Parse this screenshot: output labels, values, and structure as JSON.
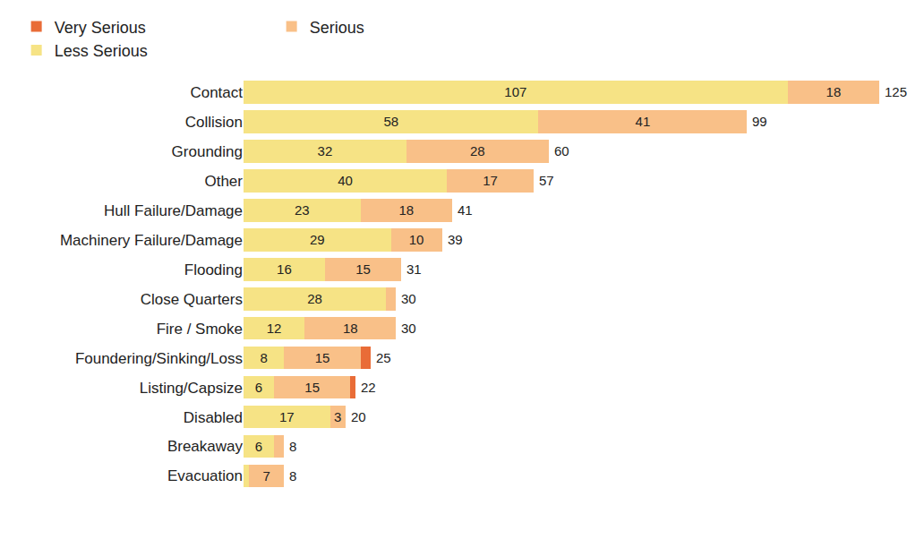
{
  "chart_data": {
    "type": "bar",
    "orientation": "horizontal",
    "stacked": true,
    "data_labels": true,
    "tick_labels": "y",
    "grid": false,
    "legend": "top-left",
    "categories": [
      "Contact",
      "Collision",
      "Grounding",
      "Other",
      "Hull Failure/Damage",
      "Machinery Failure/Damage",
      "Flooding",
      "Close Quarters",
      "Fire / Smoke",
      "Foundering/Sinking/Loss",
      "Listing/Capsize",
      "Disabled",
      "Breakaway",
      "Evacuation"
    ],
    "xlim": [
      0,
      125
    ],
    "series": [
      {
        "name": "Less Serious",
        "color": "#f6e385",
        "values": [
          107,
          58,
          32,
          40,
          23,
          29,
          16,
          28,
          12,
          8,
          6,
          17,
          6,
          1
        ],
        "value_labels": [
          "107",
          "58",
          "32",
          "40",
          "23",
          "29",
          "16",
          "28",
          "12",
          "8",
          "6",
          "17",
          "6",
          null
        ]
      },
      {
        "name": "Serious",
        "color": "#f9c088",
        "values": [
          18,
          41,
          28,
          17,
          18,
          10,
          15,
          2,
          18,
          15,
          15,
          3,
          2,
          7
        ],
        "value_labels": [
          "18",
          "41",
          "28",
          "17",
          "18",
          "10",
          "15",
          null,
          "18",
          "15",
          "15",
          "3",
          null,
          "7"
        ]
      },
      {
        "name": "Very Serious",
        "color": "#e96c37",
        "values": [
          0,
          0,
          0,
          0,
          0,
          0,
          0,
          0,
          0,
          2,
          1,
          0,
          0,
          0
        ],
        "value_labels": [
          null,
          null,
          null,
          null,
          null,
          null,
          null,
          null,
          null,
          null,
          null,
          null,
          null,
          null
        ]
      }
    ],
    "totals": [
      125,
      99,
      60,
      57,
      41,
      39,
      31,
      30,
      30,
      25,
      22,
      20,
      8,
      8
    ]
  }
}
